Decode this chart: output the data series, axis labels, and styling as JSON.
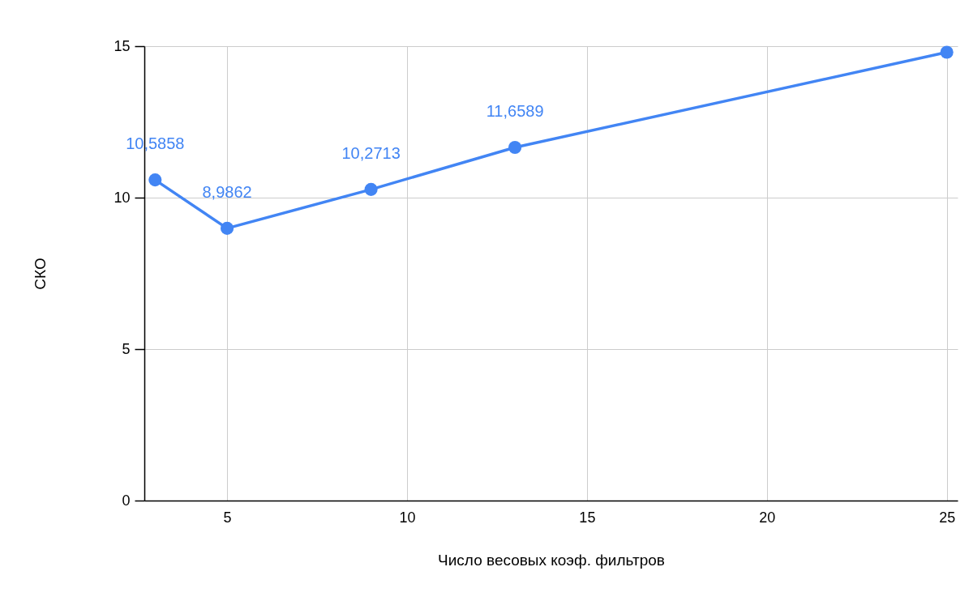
{
  "chart_data": {
    "type": "line",
    "xlabel": "Число весовых коэф. фильтров",
    "ylabel": "СКО",
    "x": [
      3,
      5,
      9,
      13,
      25
    ],
    "series": [
      {
        "color": "#4285f4",
        "values": [
          10.5858,
          8.9862,
          10.2713,
          11.6589,
          14.8
        ],
        "value_labels": [
          "10,5858",
          "8,9862",
          "10,2713",
          "11,6589",
          null
        ]
      }
    ],
    "xlim": [
      2.7,
      25.3
    ],
    "xticks": [
      5,
      10,
      15,
      20,
      25
    ],
    "ylim": [
      0,
      15
    ],
    "yticks": [
      0,
      5,
      10,
      15
    ],
    "grid": true,
    "marker": "circle",
    "line_style": "solid"
  }
}
